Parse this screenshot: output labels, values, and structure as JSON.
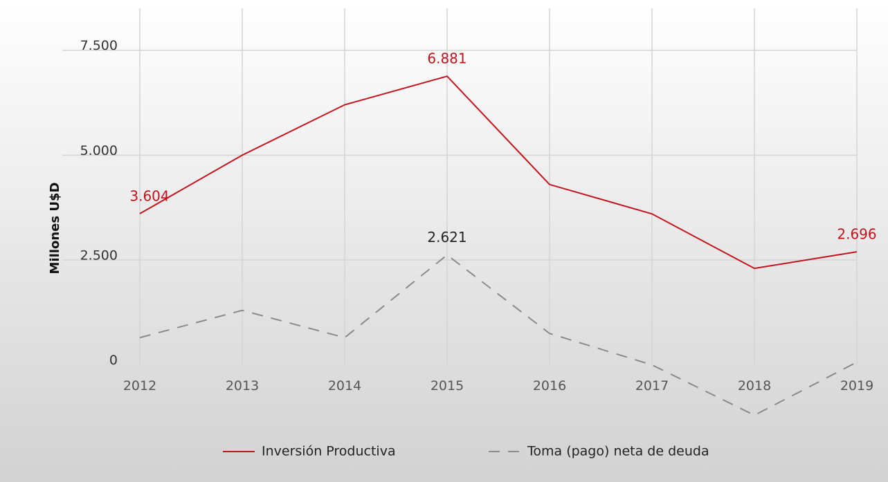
{
  "chart_data": {
    "type": "line",
    "y_label": "Millones U$D",
    "categories": [
      "2012",
      "2013",
      "2014",
      "2015",
      "2016",
      "2017",
      "2018",
      "2019"
    ],
    "series": [
      {
        "name": "Inversión Productiva",
        "color": "#c0141c",
        "dash": false,
        "values": [
          3604,
          5000,
          6200,
          6881,
          4300,
          3600,
          2300,
          2696
        ],
        "value_labels": [
          "3.604",
          null,
          null,
          "6.881",
          null,
          null,
          null,
          "2.696"
        ]
      },
      {
        "name": "Toma (pago) neta de deuda",
        "color": "#8a8a8a",
        "dash": true,
        "values": [
          650,
          1300,
          650,
          2621,
          750,
          0,
          -1200,
          65
        ],
        "value_labels": [
          null,
          null,
          null,
          "2.621",
          null,
          null,
          null,
          null
        ]
      }
    ],
    "ylim": [
      -1250,
      8500
    ],
    "yticks": [
      0,
      {
        "value": 2500,
        "label": "2.500"
      },
      {
        "value": 5000,
        "label": "5.000"
      },
      {
        "value": 7500,
        "label": "7.500"
      }
    ],
    "grid": true
  }
}
